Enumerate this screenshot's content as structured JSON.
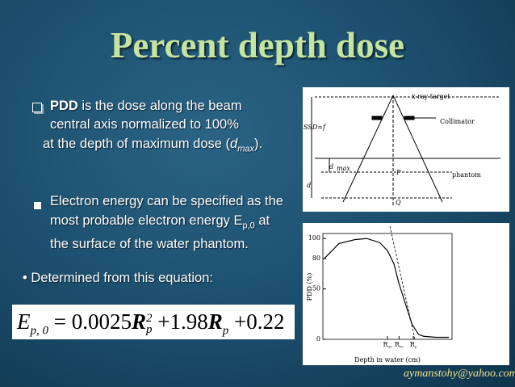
{
  "header": {
    "title": "Percent depth dose"
  },
  "bullets": [
    {
      "bold": "PDD",
      "text": " is the dose along the beam central axis normalized to 100%",
      "line2_pre": "at the depth of maximum dose (",
      "d": "d",
      "d_sub": "max",
      "line2_post": ")."
    },
    {
      "text": "Electron energy can be specified as the most probable electron energy E",
      "sub": "p,0",
      "post": " at the surface of the water phantom."
    },
    {
      "text": "Determined from this equation:"
    }
  ],
  "equation": {
    "symbol": "E",
    "symbol_sub": "p, 0",
    "eq": "= 0.0025",
    "r1": "R",
    "r1_sub": "p",
    "r1_sup": "2",
    "mid": "+1.98",
    "r2": "R",
    "r2_sub": "p",
    "end": "+0.22"
  },
  "diagram": {
    "labels": [
      "x-ray target",
      "SSD=f",
      "Collimator",
      "d",
      "max",
      "P",
      "phantom",
      "d",
      "Q"
    ]
  },
  "chart_data": {
    "type": "line",
    "y_label": "PDD (%)",
    "x_label": "Depth in water (cm)",
    "x": [
      0.1,
      1.25,
      2.5,
      3.4,
      4.4,
      5,
      5.5,
      5.9,
      6.4,
      6.9,
      7.4,
      7.8,
      8.75,
      9.75
    ],
    "values": [
      80,
      95,
      99,
      100,
      96,
      88,
      75,
      55,
      35,
      15,
      5,
      3,
      2,
      2
    ],
    "color": "#000000",
    "xlim": [
      0,
      10
    ],
    "ylim": [
      0,
      105
    ],
    "yticks": [
      0,
      50,
      80,
      100
    ],
    "x_markers": [
      {
        "value": 5,
        "label": "R",
        "sub": "90"
      },
      {
        "value": 5.9,
        "label": "R",
        "sub": "50"
      },
      {
        "value": 7,
        "label": "R",
        "sub": "p"
      }
    ]
  },
  "footer": {
    "email": "aymanstohy@yahoo.com"
  }
}
